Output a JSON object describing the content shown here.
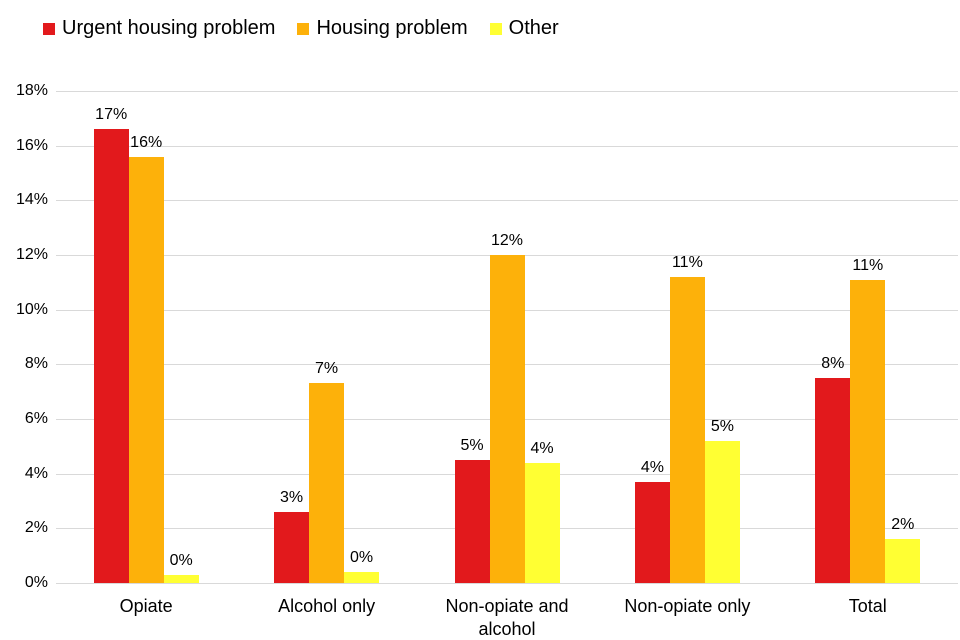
{
  "chart_data": {
    "type": "bar",
    "title": "",
    "categories": [
      "Opiate",
      "Alcohol only",
      "Non-opiate and alcohol",
      "Non-opiate only",
      "Total"
    ],
    "series": [
      {
        "name": "Urgent housing problem",
        "color": "#e2191c",
        "values": [
          16.6,
          2.6,
          4.5,
          3.7,
          7.5
        ],
        "labels": [
          "17%",
          "3%",
          "5%",
          "4%",
          "8%"
        ]
      },
      {
        "name": "Housing problem",
        "color": "#fdb10a",
        "values": [
          15.6,
          7.3,
          12.0,
          11.2,
          11.1
        ],
        "labels": [
          "16%",
          "7%",
          "12%",
          "11%",
          "11%"
        ]
      },
      {
        "name": "Other",
        "color": "#ffff33",
        "values": [
          0.3,
          0.4,
          4.4,
          5.2,
          1.6
        ],
        "labels": [
          "0%",
          "0%",
          "4%",
          "5%",
          "2%"
        ]
      }
    ],
    "ylim": [
      0,
      18
    ],
    "yticks": [
      "0%",
      "2%",
      "4%",
      "6%",
      "8%",
      "10%",
      "12%",
      "14%",
      "16%",
      "18%"
    ],
    "grid": true,
    "legend_position": "top-left",
    "colors": {
      "gridline": "#d9d9d9",
      "text": "#000000",
      "background": "#ffffff"
    }
  }
}
